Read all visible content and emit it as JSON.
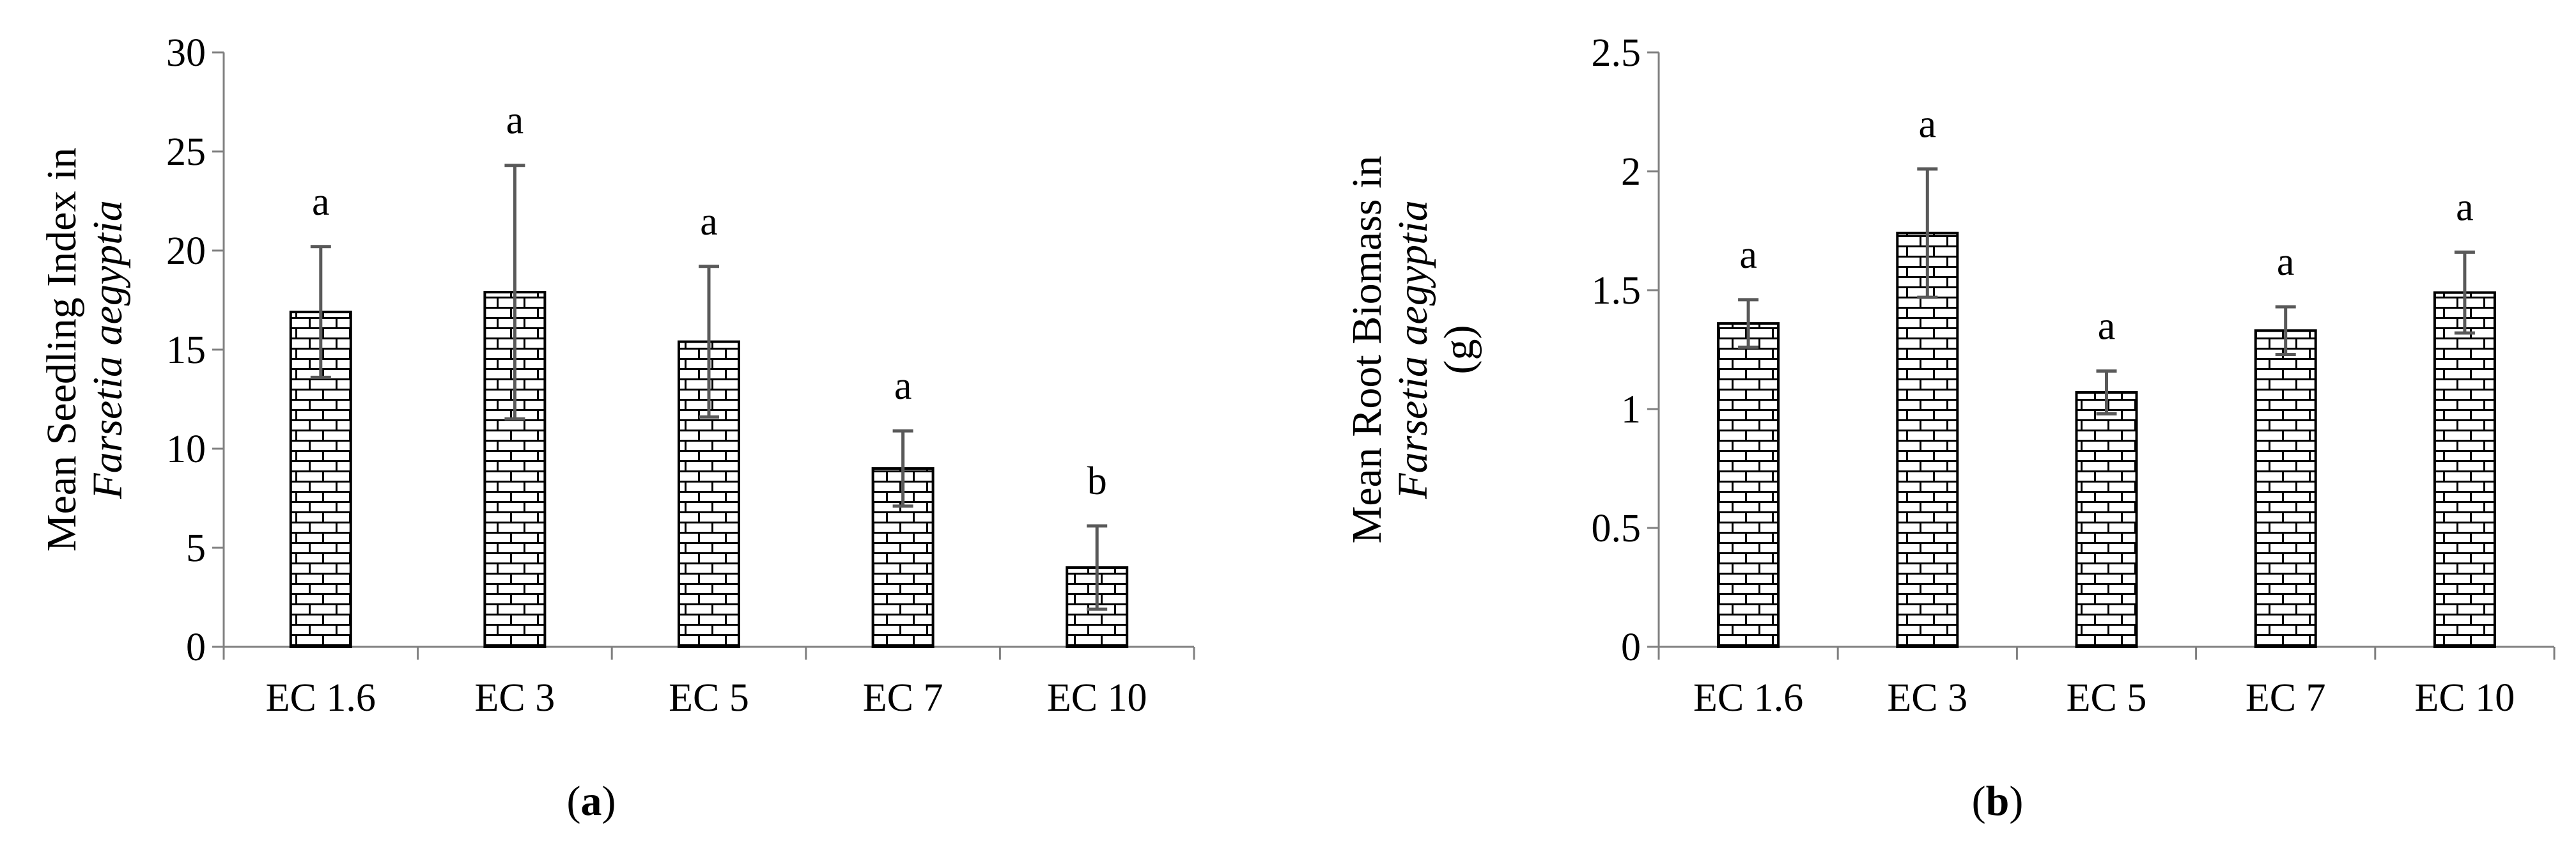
{
  "chart_data": [
    {
      "type": "bar",
      "panel": "a",
      "categories": [
        "EC 1.6",
        "EC 3",
        "EC 5",
        "EC 7",
        "EC 10"
      ],
      "values": [
        16.9,
        17.9,
        15.4,
        9.0,
        4.0
      ],
      "errors": [
        3.3,
        6.4,
        3.8,
        1.9,
        2.1
      ],
      "significance": [
        "a",
        "a",
        "a",
        "a",
        "b"
      ],
      "ylabel_line1": "Mean Seedling Index in",
      "ylabel_line2": "Farsetia aegyptia",
      "ylabel_line3": "",
      "ylim": [
        0,
        30
      ],
      "yticks": [
        0,
        5,
        10,
        15,
        20,
        25,
        30
      ],
      "ytick_labels": [
        "0",
        "5",
        "10",
        "15",
        "20",
        "25",
        "30"
      ],
      "grid": false,
      "bar_pattern": "brick"
    },
    {
      "type": "bar",
      "panel": "b",
      "categories": [
        "EC 1.6",
        "EC 3",
        "EC 5",
        "EC 7",
        "EC 10"
      ],
      "values": [
        1.36,
        1.74,
        1.07,
        1.33,
        1.49
      ],
      "errors": [
        0.1,
        0.27,
        0.09,
        0.1,
        0.17
      ],
      "significance": [
        "a",
        "a",
        "a",
        "a",
        "a"
      ],
      "ylabel_line1": "Mean Root Biomass in",
      "ylabel_line2": "Farsetia aegyptia",
      "ylabel_line3": "(g)",
      "ylim": [
        0,
        2.5
      ],
      "yticks": [
        0,
        0.5,
        1,
        1.5,
        2,
        2.5
      ],
      "ytick_labels": [
        "0",
        "0.5",
        "1",
        "1.5",
        "2",
        "2.5"
      ],
      "grid": false,
      "bar_pattern": "brick"
    }
  ],
  "panel_labels": [
    {
      "open": "(",
      "letter": "a",
      "close": ")"
    },
    {
      "open": "(",
      "letter": "b",
      "close": ")"
    }
  ],
  "colors": {
    "bar_fill": "#ffffff",
    "bar_pattern": "#000000",
    "error_bar": "#595959",
    "axis": "#808080"
  }
}
